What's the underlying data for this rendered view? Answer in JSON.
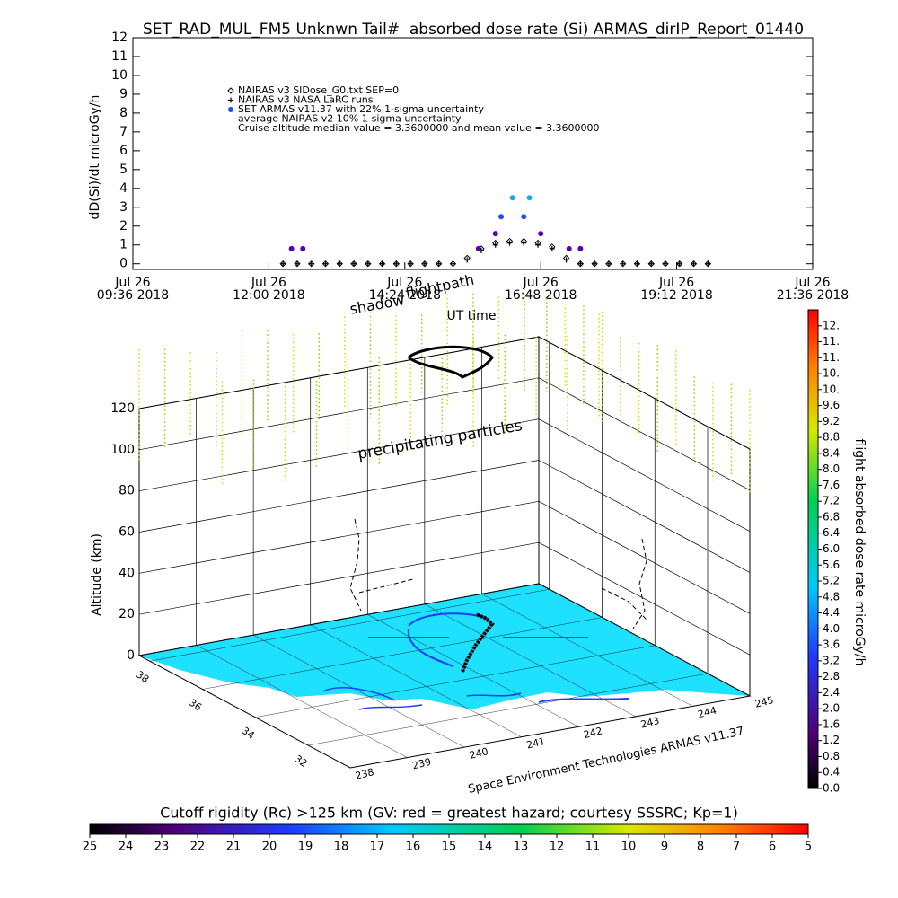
{
  "chart_data": [
    {
      "type": "scatter",
      "title": "SET_RAD_MUL_FM5 Unknwn Tail#  absorbed dose rate (Si) ARMAS_dirIP_Report_01440",
      "y_label": "dD(Si)/dt microGy/h",
      "x_label": "UT time",
      "xlim": [
        9.6,
        21.6
      ],
      "xticks": [
        {
          "value": 9.6,
          "label": [
            "Jul 26",
            "09:36 2018"
          ]
        },
        {
          "value": 12.0,
          "label": [
            "Jul 26",
            "12:00 2018"
          ]
        },
        {
          "value": 14.4,
          "label": [
            "Jul 26",
            "14:24 2018"
          ]
        },
        {
          "value": 16.8,
          "label": [
            "Jul 26",
            "16:48 2018"
          ]
        },
        {
          "value": 19.2,
          "label": [
            "Jul 26",
            "19:12 2018"
          ]
        },
        {
          "value": 21.6,
          "label": [
            "Jul 26",
            "21:36 2018"
          ]
        }
      ],
      "ylim": [
        -0.3,
        12
      ],
      "yticks": [
        0,
        1,
        2,
        3,
        4,
        5,
        6,
        7,
        8,
        9,
        10,
        11,
        12
      ],
      "series": [
        {
          "name": "NAIRAS v3 SIDose_G0.txt SEP=0",
          "color": "#000000",
          "marker": "diamond",
          "x": [
            12.25,
            12.5,
            12.75,
            13.0,
            13.25,
            13.5,
            13.75,
            14.0,
            14.25,
            14.5,
            14.75,
            15.0,
            15.25,
            15.5,
            15.75,
            16.0,
            16.25,
            16.5,
            16.75,
            17.0,
            17.25,
            17.5,
            17.75,
            18.0,
            18.25,
            18.5,
            18.75,
            19.0,
            19.25,
            19.5,
            19.75
          ],
          "values": [
            0,
            0,
            0,
            0,
            0,
            0,
            0,
            0,
            0,
            0,
            0,
            0,
            0,
            0.3,
            0.8,
            1.1,
            1.2,
            1.2,
            1.1,
            0.9,
            0.3,
            0,
            0,
            0,
            0,
            0,
            0,
            0,
            0,
            0,
            0
          ]
        },
        {
          "name": "NAIRAS v3 NASA LaRC runs",
          "color": "#000000",
          "marker": "plus",
          "x": [
            12.25,
            12.5,
            12.75,
            13.0,
            13.25,
            13.5,
            13.75,
            14.0,
            14.25,
            14.5,
            14.75,
            15.0,
            15.25,
            15.5,
            15.75,
            16.0,
            16.25,
            16.5,
            16.75,
            17.0,
            17.25,
            17.5,
            17.75,
            18.0,
            18.25,
            18.5,
            18.75,
            19.0,
            19.25,
            19.5,
            19.75
          ],
          "values": [
            0,
            0,
            0,
            0,
            0,
            0,
            0,
            0,
            0,
            0,
            0,
            0,
            0,
            0.2,
            0.7,
            1.0,
            1.1,
            1.1,
            1.0,
            0.8,
            0.2,
            0,
            0,
            0,
            0,
            0,
            0,
            0,
            0,
            0,
            0
          ]
        },
        {
          "name": "SET ARMAS v11.37 with 22% 1-sigma uncertainty",
          "color": "#1e50e6",
          "marker": "circle",
          "x": [
            12.4,
            12.6,
            15.7,
            16.0,
            16.1,
            16.3,
            16.5,
            16.6,
            16.8,
            17.3,
            17.5
          ],
          "values": [
            0.8,
            0.8,
            0.8,
            1.6,
            2.5,
            3.5,
            2.5,
            3.5,
            1.6,
            0.8,
            0.8
          ],
          "point_colors": [
            "#5a00b4",
            "#5a00b4",
            "#5a00b4",
            "#5a00b4",
            "#1e50e6",
            "#19a8e6",
            "#1e50e6",
            "#19a8e6",
            "#5a00b4",
            "#5a00b4",
            "#5a00b4"
          ]
        }
      ],
      "notes": [
        "average NAIRAS v2 10% 1-sigma uncertainty",
        "Cruise altitude median value = 3.3600000 and mean value = 3.3600000"
      ]
    },
    {
      "type": "surface3d",
      "z_label": "Altitude (km)",
      "zlim": [
        0,
        120
      ],
      "zticks": [
        0,
        20,
        40,
        60,
        80,
        100,
        120
      ],
      "xlim": [
        238,
        245
      ],
      "xticks": [
        238,
        239,
        240,
        241,
        242,
        243,
        244,
        245
      ],
      "ylim": [
        30.4,
        38.4
      ],
      "yticks": [
        32,
        34,
        36,
        38
      ],
      "annotations": [
        "precipitating particles",
        "shadow",
        "flightpath"
      ],
      "credit": "Space Environment Technologies ARMAS v11.37",
      "colorbar": {
        "label": "flight absorbed dose rate microGy/h",
        "lim": [
          0,
          12
        ],
        "ticks": [
          {
            "value": 0,
            "label": "0.0"
          },
          0.4,
          0.8,
          1.2,
          1.6,
          {
            "value": 2,
            "label": "2.0"
          },
          2.4,
          2.8,
          3.2,
          3.6,
          {
            "value": 4,
            "label": "4.0"
          },
          4.4,
          4.8,
          5.2,
          5.6,
          {
            "value": 6,
            "label": "6.0"
          },
          6.4,
          6.8,
          7.2,
          7.6,
          {
            "value": 8,
            "label": "8.0"
          },
          8.4,
          8.8,
          9.2,
          9.6,
          {
            "value": 10,
            "label": "10."
          },
          {
            "value": 10.4,
            "label": "10."
          },
          {
            "value": 10.8,
            "label": "11."
          },
          {
            "value": 11.2,
            "label": "11."
          },
          {
            "value": 11.6,
            "label": "12."
          }
        ]
      }
    },
    {
      "type": "colorbar",
      "title": "Cutoff rigidity (Rc) >125 km (GV: red = greatest hazard; courtesy SSSRC; Kp=1)",
      "xlim": [
        25,
        5
      ],
      "xticks": [
        25,
        24,
        23,
        22,
        21,
        20,
        19,
        18,
        17,
        16,
        15,
        14,
        13,
        12,
        11,
        10,
        9,
        8,
        7,
        6,
        5
      ]
    }
  ]
}
